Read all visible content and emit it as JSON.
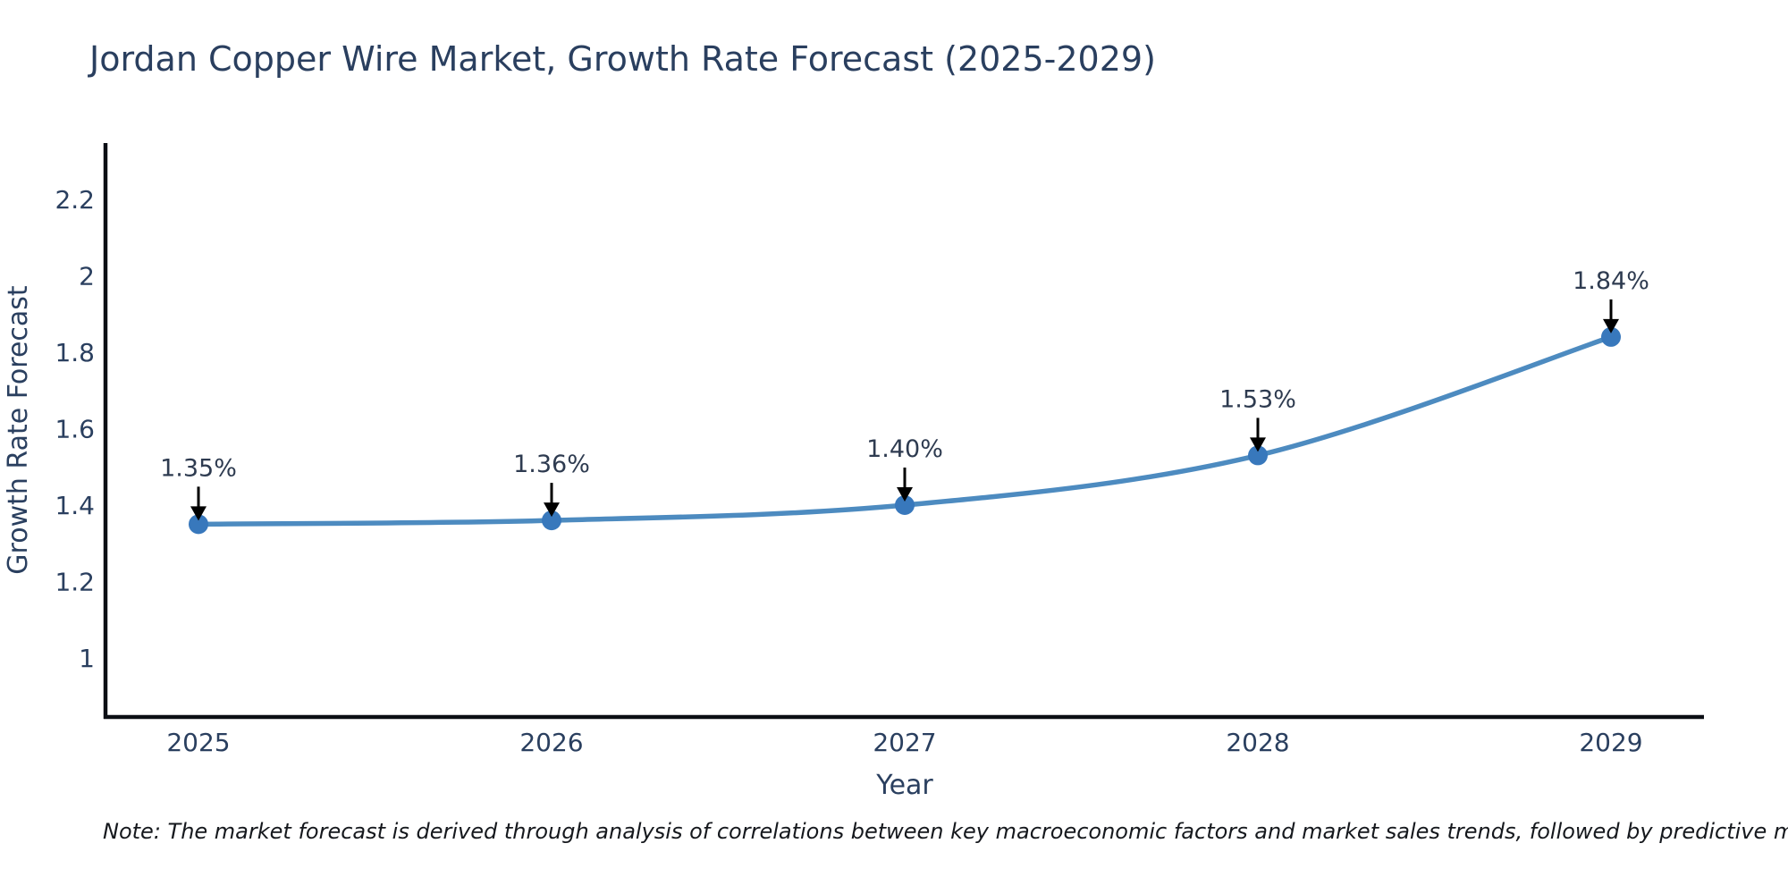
{
  "title": "Jordan Copper Wire Market, Growth Rate Forecast (2025-2029)",
  "note": "Note: The market forecast is derived through analysis of correlations between key macroeconomic factors and market sales trends, followed by predictive modeling to project future sales",
  "chart_data": {
    "type": "line",
    "title": "Jordan Copper Wire Market, Growth Rate Forecast (2025-2029)",
    "xlabel": "Year",
    "ylabel": "Growth Rate Forecast",
    "categories": [
      "2025",
      "2026",
      "2027",
      "2028",
      "2029"
    ],
    "series": [
      {
        "name": "Growth Rate Forecast",
        "values": [
          1.35,
          1.36,
          1.4,
          1.53,
          1.84
        ],
        "point_labels": [
          "1.35%",
          "1.36%",
          "1.40%",
          "1.53%",
          "1.84%"
        ]
      }
    ],
    "yticks": [
      2.2,
      2,
      1.8,
      1.6,
      1.4,
      1.2,
      1
    ],
    "ylim": [
      0.85,
      2.35
    ],
    "grid": false,
    "legend_position": "none",
    "line_smoothing": "spline",
    "colors": {
      "line": "#4d8bc0",
      "marker": "#3878bc",
      "axis_spine": "#0b0e14",
      "chart_text": "#2a3f5f",
      "annotation_text": "#2e3b50",
      "arrow": "#000000",
      "background": "#ffffff"
    }
  }
}
